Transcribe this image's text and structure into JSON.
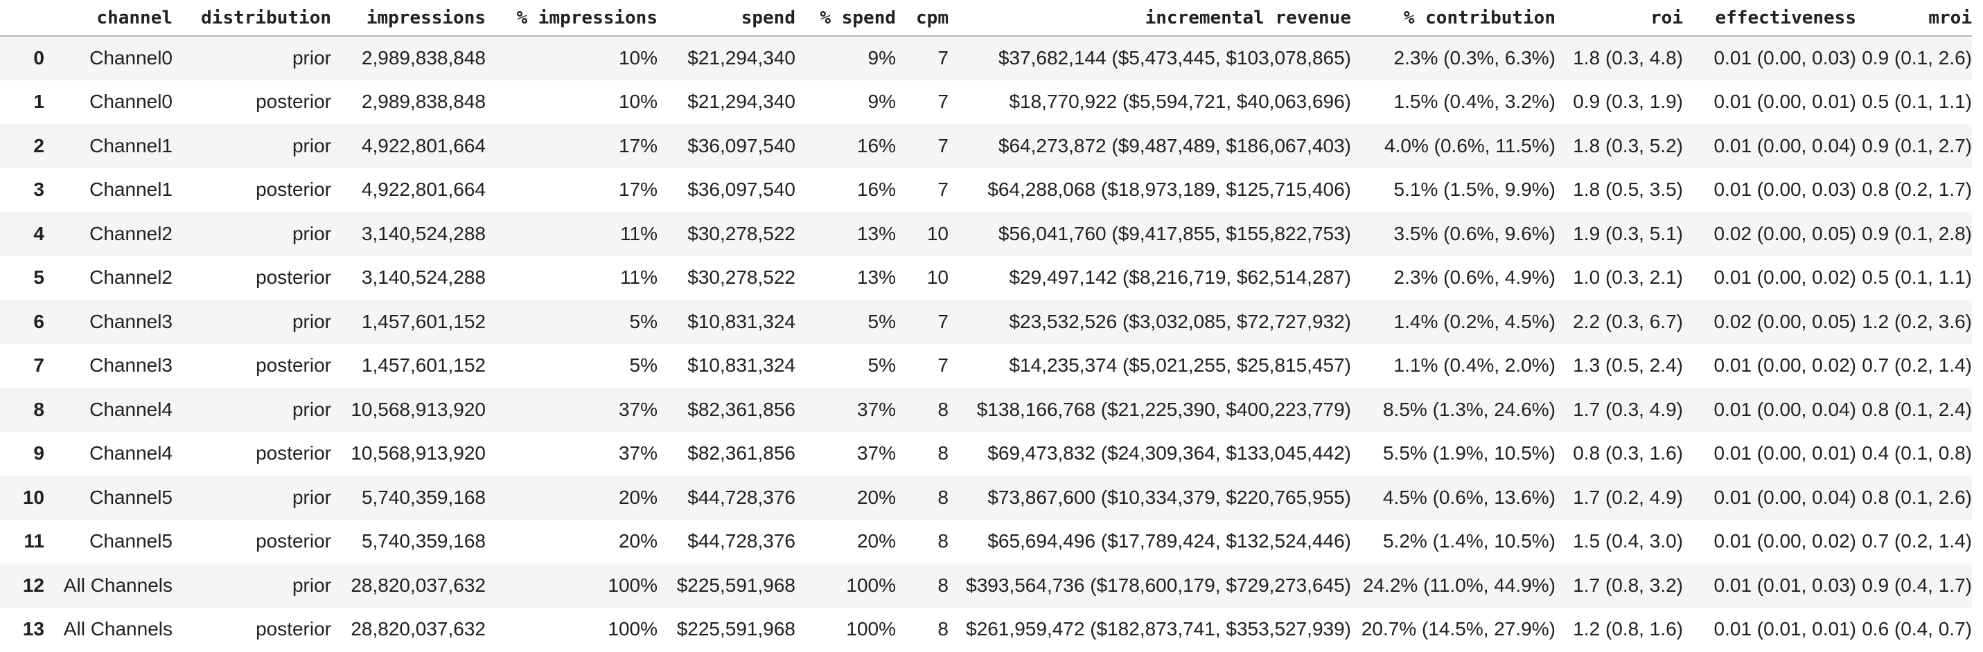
{
  "colors": {
    "text": "#202124",
    "row_stripe": "#f5f5f5",
    "header_divider": "#b5b5b5",
    "background": "#ffffff"
  },
  "table": {
    "index_header": "",
    "columns": [
      {
        "key": "channel",
        "label": "channel"
      },
      {
        "key": "distribution",
        "label": "distribution"
      },
      {
        "key": "impressions",
        "label": "impressions"
      },
      {
        "key": "pct_impressions",
        "label": "% impressions"
      },
      {
        "key": "spend",
        "label": "spend"
      },
      {
        "key": "pct_spend",
        "label": "% spend"
      },
      {
        "key": "cpm",
        "label": "cpm"
      },
      {
        "key": "incremental_revenue",
        "label": "incremental revenue"
      },
      {
        "key": "pct_contribution",
        "label": "% contribution"
      },
      {
        "key": "roi",
        "label": "roi"
      },
      {
        "key": "effectiveness",
        "label": "effectiveness"
      },
      {
        "key": "mroi",
        "label": "mroi"
      }
    ],
    "rows": [
      {
        "index": "0",
        "channel": "Channel0",
        "distribution": "prior",
        "impressions": "2,989,838,848",
        "pct_impressions": "10%",
        "spend": "$21,294,340",
        "pct_spend": "9%",
        "cpm": "7",
        "incremental_revenue": "$37,682,144 ($5,473,445, $103,078,865)",
        "pct_contribution": "2.3% (0.3%, 6.3%)",
        "roi": "1.8 (0.3, 4.8)",
        "effectiveness": "0.01 (0.00, 0.03)",
        "mroi": "0.9 (0.1, 2.6)"
      },
      {
        "index": "1",
        "channel": "Channel0",
        "distribution": "posterior",
        "impressions": "2,989,838,848",
        "pct_impressions": "10%",
        "spend": "$21,294,340",
        "pct_spend": "9%",
        "cpm": "7",
        "incremental_revenue": "$18,770,922 ($5,594,721, $40,063,696)",
        "pct_contribution": "1.5% (0.4%, 3.2%)",
        "roi": "0.9 (0.3, 1.9)",
        "effectiveness": "0.01 (0.00, 0.01)",
        "mroi": "0.5 (0.1, 1.1)"
      },
      {
        "index": "2",
        "channel": "Channel1",
        "distribution": "prior",
        "impressions": "4,922,801,664",
        "pct_impressions": "17%",
        "spend": "$36,097,540",
        "pct_spend": "16%",
        "cpm": "7",
        "incremental_revenue": "$64,273,872 ($9,487,489, $186,067,403)",
        "pct_contribution": "4.0% (0.6%, 11.5%)",
        "roi": "1.8 (0.3, 5.2)",
        "effectiveness": "0.01 (0.00, 0.04)",
        "mroi": "0.9 (0.1, 2.7)"
      },
      {
        "index": "3",
        "channel": "Channel1",
        "distribution": "posterior",
        "impressions": "4,922,801,664",
        "pct_impressions": "17%",
        "spend": "$36,097,540",
        "pct_spend": "16%",
        "cpm": "7",
        "incremental_revenue": "$64,288,068 ($18,973,189, $125,715,406)",
        "pct_contribution": "5.1% (1.5%, 9.9%)",
        "roi": "1.8 (0.5, 3.5)",
        "effectiveness": "0.01 (0.00, 0.03)",
        "mroi": "0.8 (0.2, 1.7)"
      },
      {
        "index": "4",
        "channel": "Channel2",
        "distribution": "prior",
        "impressions": "3,140,524,288",
        "pct_impressions": "11%",
        "spend": "$30,278,522",
        "pct_spend": "13%",
        "cpm": "10",
        "incremental_revenue": "$56,041,760 ($9,417,855, $155,822,753)",
        "pct_contribution": "3.5% (0.6%, 9.6%)",
        "roi": "1.9 (0.3, 5.1)",
        "effectiveness": "0.02 (0.00, 0.05)",
        "mroi": "0.9 (0.1, 2.8)"
      },
      {
        "index": "5",
        "channel": "Channel2",
        "distribution": "posterior",
        "impressions": "3,140,524,288",
        "pct_impressions": "11%",
        "spend": "$30,278,522",
        "pct_spend": "13%",
        "cpm": "10",
        "incremental_revenue": "$29,497,142 ($8,216,719, $62,514,287)",
        "pct_contribution": "2.3% (0.6%, 4.9%)",
        "roi": "1.0 (0.3, 2.1)",
        "effectiveness": "0.01 (0.00, 0.02)",
        "mroi": "0.5 (0.1, 1.1)"
      },
      {
        "index": "6",
        "channel": "Channel3",
        "distribution": "prior",
        "impressions": "1,457,601,152",
        "pct_impressions": "5%",
        "spend": "$10,831,324",
        "pct_spend": "5%",
        "cpm": "7",
        "incremental_revenue": "$23,532,526 ($3,032,085, $72,727,932)",
        "pct_contribution": "1.4% (0.2%, 4.5%)",
        "roi": "2.2 (0.3, 6.7)",
        "effectiveness": "0.02 (0.00, 0.05)",
        "mroi": "1.2 (0.2, 3.6)"
      },
      {
        "index": "7",
        "channel": "Channel3",
        "distribution": "posterior",
        "impressions": "1,457,601,152",
        "pct_impressions": "5%",
        "spend": "$10,831,324",
        "pct_spend": "5%",
        "cpm": "7",
        "incremental_revenue": "$14,235,374 ($5,021,255, $25,815,457)",
        "pct_contribution": "1.1% (0.4%, 2.0%)",
        "roi": "1.3 (0.5, 2.4)",
        "effectiveness": "0.01 (0.00, 0.02)",
        "mroi": "0.7 (0.2, 1.4)"
      },
      {
        "index": "8",
        "channel": "Channel4",
        "distribution": "prior",
        "impressions": "10,568,913,920",
        "pct_impressions": "37%",
        "spend": "$82,361,856",
        "pct_spend": "37%",
        "cpm": "8",
        "incremental_revenue": "$138,166,768 ($21,225,390, $400,223,779)",
        "pct_contribution": "8.5% (1.3%, 24.6%)",
        "roi": "1.7 (0.3, 4.9)",
        "effectiveness": "0.01 (0.00, 0.04)",
        "mroi": "0.8 (0.1, 2.4)"
      },
      {
        "index": "9",
        "channel": "Channel4",
        "distribution": "posterior",
        "impressions": "10,568,913,920",
        "pct_impressions": "37%",
        "spend": "$82,361,856",
        "pct_spend": "37%",
        "cpm": "8",
        "incremental_revenue": "$69,473,832 ($24,309,364, $133,045,442)",
        "pct_contribution": "5.5% (1.9%, 10.5%)",
        "roi": "0.8 (0.3, 1.6)",
        "effectiveness": "0.01 (0.00, 0.01)",
        "mroi": "0.4 (0.1, 0.8)"
      },
      {
        "index": "10",
        "channel": "Channel5",
        "distribution": "prior",
        "impressions": "5,740,359,168",
        "pct_impressions": "20%",
        "spend": "$44,728,376",
        "pct_spend": "20%",
        "cpm": "8",
        "incremental_revenue": "$73,867,600 ($10,334,379, $220,765,955)",
        "pct_contribution": "4.5% (0.6%, 13.6%)",
        "roi": "1.7 (0.2, 4.9)",
        "effectiveness": "0.01 (0.00, 0.04)",
        "mroi": "0.8 (0.1, 2.6)"
      },
      {
        "index": "11",
        "channel": "Channel5",
        "distribution": "posterior",
        "impressions": "5,740,359,168",
        "pct_impressions": "20%",
        "spend": "$44,728,376",
        "pct_spend": "20%",
        "cpm": "8",
        "incremental_revenue": "$65,694,496 ($17,789,424, $132,524,446)",
        "pct_contribution": "5.2% (1.4%, 10.5%)",
        "roi": "1.5 (0.4, 3.0)",
        "effectiveness": "0.01 (0.00, 0.02)",
        "mroi": "0.7 (0.2, 1.4)"
      },
      {
        "index": "12",
        "channel": "All Channels",
        "distribution": "prior",
        "impressions": "28,820,037,632",
        "pct_impressions": "100%",
        "spend": "$225,591,968",
        "pct_spend": "100%",
        "cpm": "8",
        "incremental_revenue": "$393,564,736 ($178,600,179, $729,273,645)",
        "pct_contribution": "24.2% (11.0%, 44.9%)",
        "roi": "1.7 (0.8, 3.2)",
        "effectiveness": "0.01 (0.01, 0.03)",
        "mroi": "0.9 (0.4, 1.7)"
      },
      {
        "index": "13",
        "channel": "All Channels",
        "distribution": "posterior",
        "impressions": "28,820,037,632",
        "pct_impressions": "100%",
        "spend": "$225,591,968",
        "pct_spend": "100%",
        "cpm": "8",
        "incremental_revenue": "$261,959,472 ($182,873,741, $353,527,939)",
        "pct_contribution": "20.7% (14.5%, 27.9%)",
        "roi": "1.2 (0.8, 1.6)",
        "effectiveness": "0.01 (0.01, 0.01)",
        "mroi": "0.6 (0.4, 0.7)"
      }
    ]
  }
}
